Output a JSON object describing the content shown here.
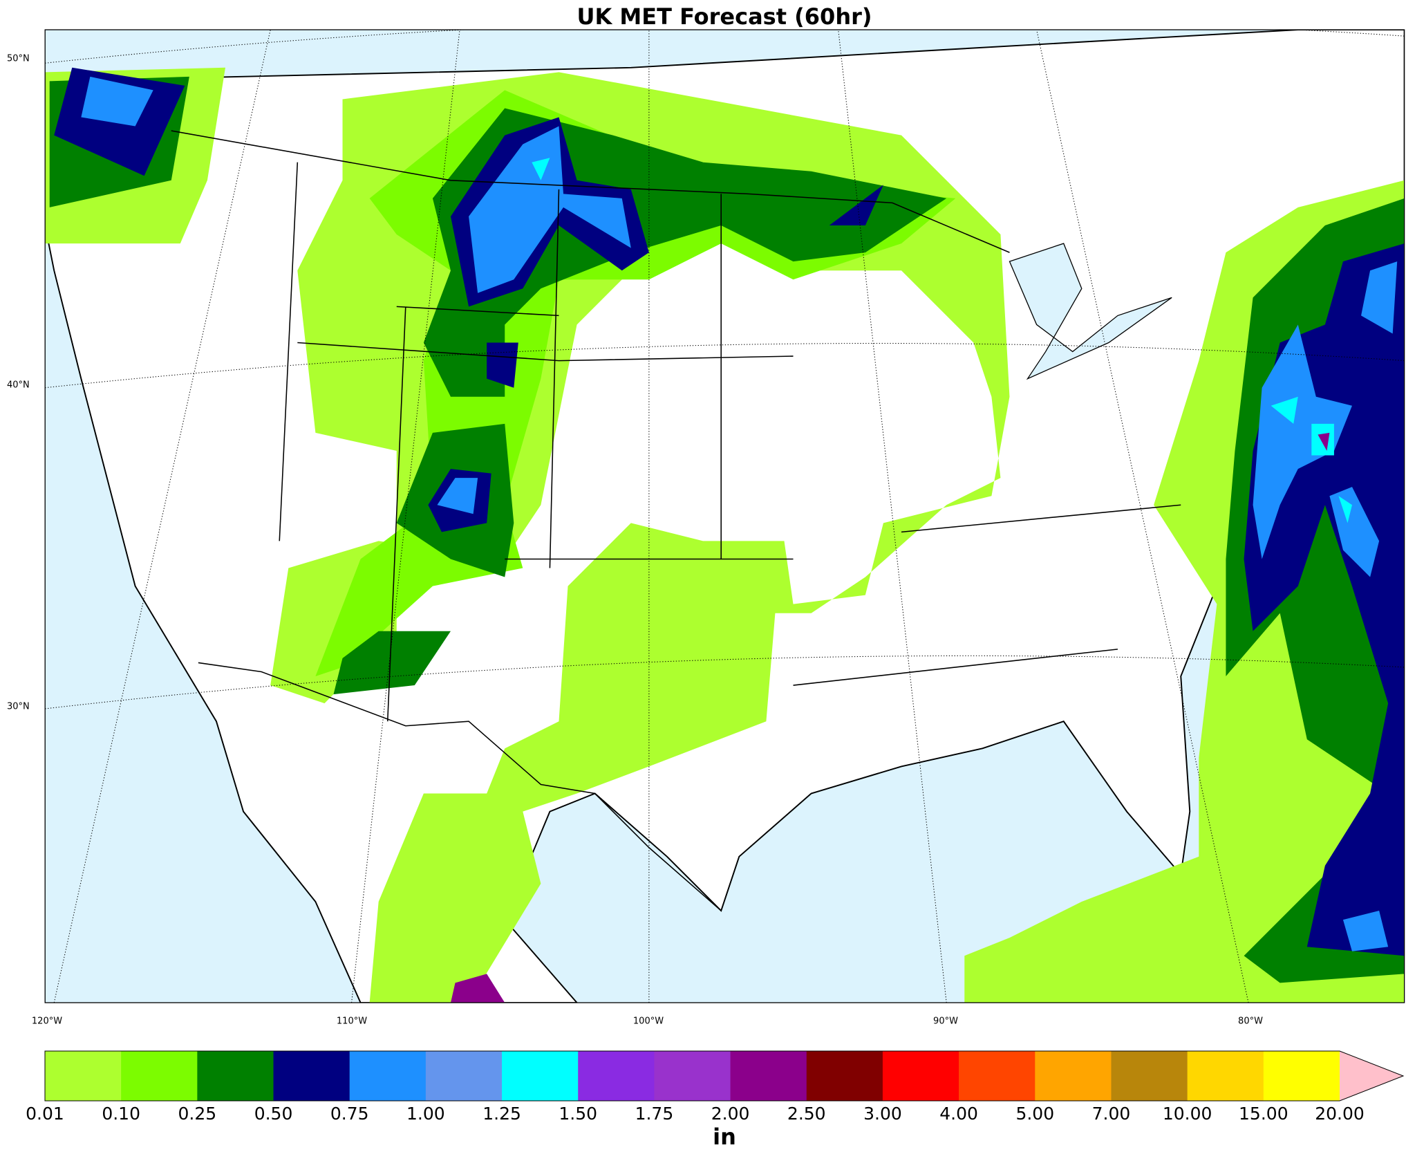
{
  "title": "UK MET Forecast (60hr)",
  "lat_labels": [
    "50°N",
    "40°N",
    "30°N"
  ],
  "lon_labels": [
    "120°W",
    "110°W",
    "100°W",
    "90°W",
    "80°W"
  ],
  "colorbar": {
    "labels": [
      "0.01",
      "0.10",
      "0.25",
      "0.50",
      "0.75",
      "1.00",
      "1.25",
      "1.50",
      "1.75",
      "2.00",
      "2.50",
      "3.00",
      "4.00",
      "5.00",
      "7.00",
      "10.00",
      "15.00",
      "20.00"
    ],
    "colors": [
      "#adff2f",
      "#7cfc00",
      "#008000",
      "#000080",
      "#1e90ff",
      "#6495ed",
      "#00ffff",
      "#8a2be2",
      "#9932cc",
      "#8b008b",
      "#800000",
      "#ff0000",
      "#ff4500",
      "#ffa500",
      "#b8860b",
      "#ffd700",
      "#ffff00"
    ],
    "extend_color": "#ffc0cb",
    "unit": "in"
  }
}
